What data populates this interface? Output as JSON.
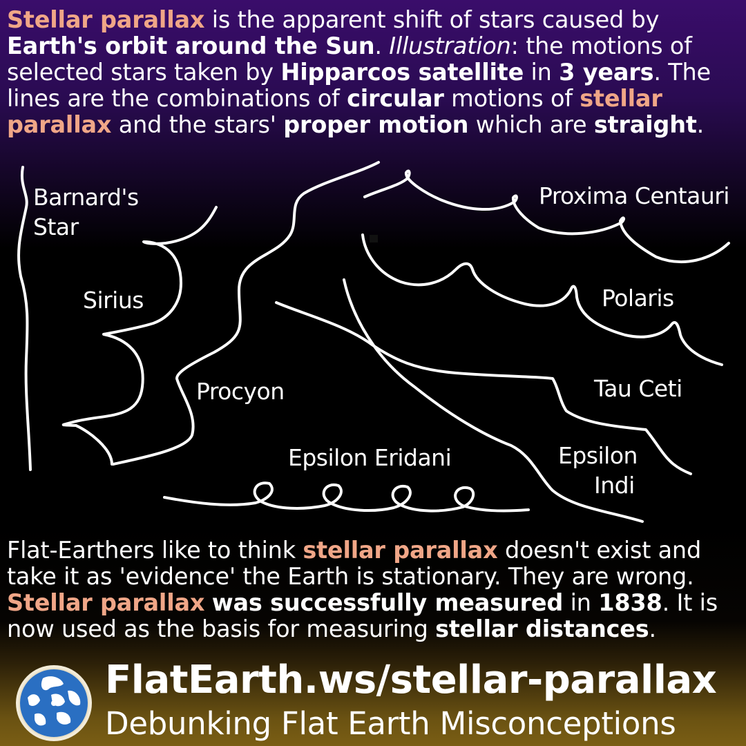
{
  "intro": {
    "l1": [
      "Stellar parallax",
      " is the apparent shift of stars caused by"
    ],
    "l2": [
      "Earth's orbit around the Sun",
      ". ",
      "Illustration",
      ": the motions of"
    ],
    "l3": [
      "selected stars taken by ",
      "Hipparcos satellite",
      " in ",
      "3 years",
      ". The"
    ],
    "l4": [
      "lines are the combinations of ",
      "circular",
      " motions of ",
      "stellar"
    ],
    "l5": [
      "parallax",
      " and the stars' ",
      "proper motion",
      " which are ",
      "straight",
      "."
    ]
  },
  "star_labels": {
    "barnard": [
      "Barnard's",
      "Star"
    ],
    "sirius": "Sirius",
    "procyon": "Procyon",
    "epsilon_eridani": "Epsilon Eridani",
    "proxima": "Proxima Centauri",
    "polaris": "Polaris",
    "tau_ceti": "Tau Ceti",
    "epsilon_indi": [
      "Epsilon",
      "Indi"
    ]
  },
  "outro": {
    "l1": [
      "Flat-Earthers like to think ",
      "stellar parallax",
      " doesn't exist and"
    ],
    "l2": "take it as 'evidence' the Earth is stationary. They are wrong.",
    "l3": [
      "Stellar parallax",
      " ",
      "was successfully measured",
      " in ",
      "1838",
      ". It is"
    ],
    "l4": [
      "now used as the basis for measuring ",
      "stellar distances",
      "."
    ]
  },
  "footer": {
    "url": "FlatEarth.ws/stellar-parallax",
    "tagline": "Debunking Flat Earth Misconceptions",
    "logo_icon": "globe-icon"
  },
  "colors": {
    "highlight": "#f0a687",
    "text": "#ffffff",
    "background_top": "#3a0d6b",
    "background_bottom": "#7a5e14"
  }
}
